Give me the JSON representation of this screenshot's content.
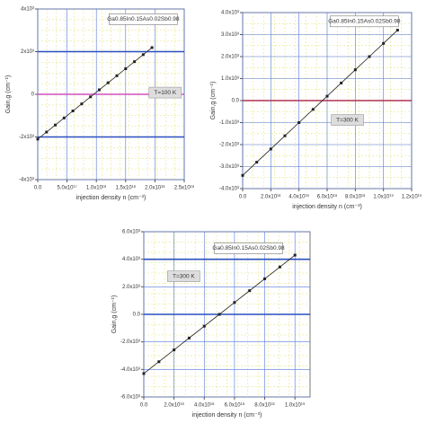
{
  "chart_data": [
    {
      "type": "line",
      "title": "Ga0.85In0.15As0.02Sb0.98",
      "annotation": "T=100 K",
      "x_label": "injection density  n (cm⁻³)",
      "y_label": "Gain,g (cm⁻¹)",
      "x": [
        0,
        1.5e+17,
        3e+17,
        4.5e+17,
        6e+17,
        7.5e+17,
        9e+17,
        1.05e+18,
        1.2e+18,
        1.35e+18,
        1.5e+18,
        1.65e+18,
        1.8e+18,
        1.95e+18
      ],
      "series": [
        {
          "color": "#222222",
          "values": [
            -2100,
            -1770,
            -1440,
            -1110,
            -780,
            -450,
            -120,
            210,
            540,
            870,
            1200,
            1530,
            1860,
            2190
          ]
        }
      ],
      "xlim": [
        0,
        2.5e+18
      ],
      "xticks": [
        {
          "value": 0,
          "label": "0.0"
        },
        {
          "value": 5e+17,
          "label": "5.0x10¹⁷"
        },
        {
          "value": 1e+18,
          "label": "1.0x10¹⁸"
        },
        {
          "value": 1.5e+18,
          "label": "1.5x10¹⁸"
        },
        {
          "value": 2e+18,
          "label": "2.0x10¹⁸"
        },
        {
          "value": 2.5e+18,
          "label": "2.5x10¹⁸"
        }
      ],
      "ylim": [
        -4000,
        4000
      ],
      "yticks": [
        {
          "value": -4000,
          "label": "-4x10³"
        },
        {
          "value": -2000,
          "label": "-2x10³"
        },
        0,
        {
          "value": 2000,
          "label": "2x10³"
        },
        {
          "value": 4000,
          "label": "4x10³"
        }
      ],
      "grid": true,
      "reference_lines": [
        {
          "y": 2000,
          "color": "#2a4fbf"
        },
        {
          "y": 0,
          "color": "#d050c0"
        },
        {
          "y": -2000,
          "color": "#2a4fbf"
        }
      ]
    },
    {
      "type": "line",
      "title": "Ga0.85In0.15As0.02Sb0.98",
      "annotation": "T=300 K",
      "x_label": "injection density  n (cm⁻³)",
      "y_label": "Gain,g (cm⁻¹)",
      "x": [
        0,
        1e+18,
        2e+18,
        3e+18,
        4e+18,
        5e+18,
        6e+18,
        7e+18,
        8e+18,
        9e+18,
        1e+19,
        1.1e+19
      ],
      "series": [
        {
          "color": "#222222",
          "values": [
            -3400,
            -2800,
            -2200,
            -1600,
            -1000,
            -400,
            200,
            800,
            1400,
            2000,
            2600,
            3200
          ]
        }
      ],
      "xlim": [
        0,
        1.2e+19
      ],
      "xticks": [
        {
          "value": 0,
          "label": "0.0"
        },
        {
          "value": 2e+18,
          "label": "2.0x10¹⁸"
        },
        {
          "value": 4e+18,
          "label": "4.0x10¹⁸"
        },
        {
          "value": 6e+18,
          "label": "6.0x10¹⁸"
        },
        {
          "value": 8e+18,
          "label": "8.0x10¹⁸"
        },
        {
          "value": 1e+19,
          "label": "1.0x10¹⁹"
        },
        {
          "value": 1.2e+19,
          "label": "1.2x10¹⁹"
        }
      ],
      "ylim": [
        -4000,
        4000
      ],
      "yticks": [
        {
          "value": -4000,
          "label": "-4.0x10³"
        },
        {
          "value": -3000,
          "label": "-3.0x10³"
        },
        {
          "value": -2000,
          "label": "-2.0x10³"
        },
        {
          "value": -1000,
          "label": "-1.0x10³"
        },
        {
          "value": 0,
          "label": "0.0"
        },
        {
          "value": 1000,
          "label": "1.0x10³"
        },
        {
          "value": 2000,
          "label": "2.0x10³"
        },
        {
          "value": 3000,
          "label": "3.0x10³"
        },
        {
          "value": 4000,
          "label": "4.0x10³"
        }
      ],
      "grid": true,
      "reference_lines": [
        {
          "y": 0,
          "color": "#b03050"
        }
      ]
    },
    {
      "type": "line",
      "title": "Ga0.85In0.15As0.02Sb0.98",
      "annotation": "T=300 K",
      "x_label": "injection density  n (cm⁻³)",
      "y_label": "Gain,g (cm⁻¹)",
      "x": [
        0,
        1e+18,
        2e+18,
        3e+18,
        4e+18,
        5e+18,
        6e+18,
        7e+18,
        8e+18,
        9e+18,
        1e+19
      ],
      "series": [
        {
          "color": "#222222",
          "values": [
            -4300,
            -3440,
            -2580,
            -1720,
            -860,
            0,
            860,
            1720,
            2580,
            3440,
            4300
          ]
        }
      ],
      "xlim": [
        0,
        1.1e+19
      ],
      "xticks": [
        {
          "value": 0,
          "label": "0.0"
        },
        {
          "value": 2e+18,
          "label": "2.0x10¹⁸"
        },
        {
          "value": 4e+18,
          "label": "4.0x10¹⁸"
        },
        {
          "value": 6e+18,
          "label": "6.0x10¹⁸"
        },
        {
          "value": 8e+18,
          "label": "8.0x10¹⁸"
        },
        {
          "value": 1e+19,
          "label": "1.0x10¹⁹"
        }
      ],
      "ylim": [
        -6000,
        6000
      ],
      "yticks": [
        {
          "value": -6000,
          "label": "-6.0x10³"
        },
        {
          "value": -4000,
          "label": "-4.0x10³"
        },
        {
          "value": -2000,
          "label": "-2.0x10³"
        },
        {
          "value": 0,
          "label": "0.0"
        },
        {
          "value": 2000,
          "label": "2.0x10³"
        },
        {
          "value": 4000,
          "label": "4.0x10³"
        },
        {
          "value": 6000,
          "label": "6.0x10³"
        }
      ],
      "grid": true,
      "reference_lines": [
        {
          "y": 4000,
          "color": "#2a4fbf"
        },
        {
          "y": 0,
          "color": "#2a4fbf"
        }
      ]
    }
  ]
}
